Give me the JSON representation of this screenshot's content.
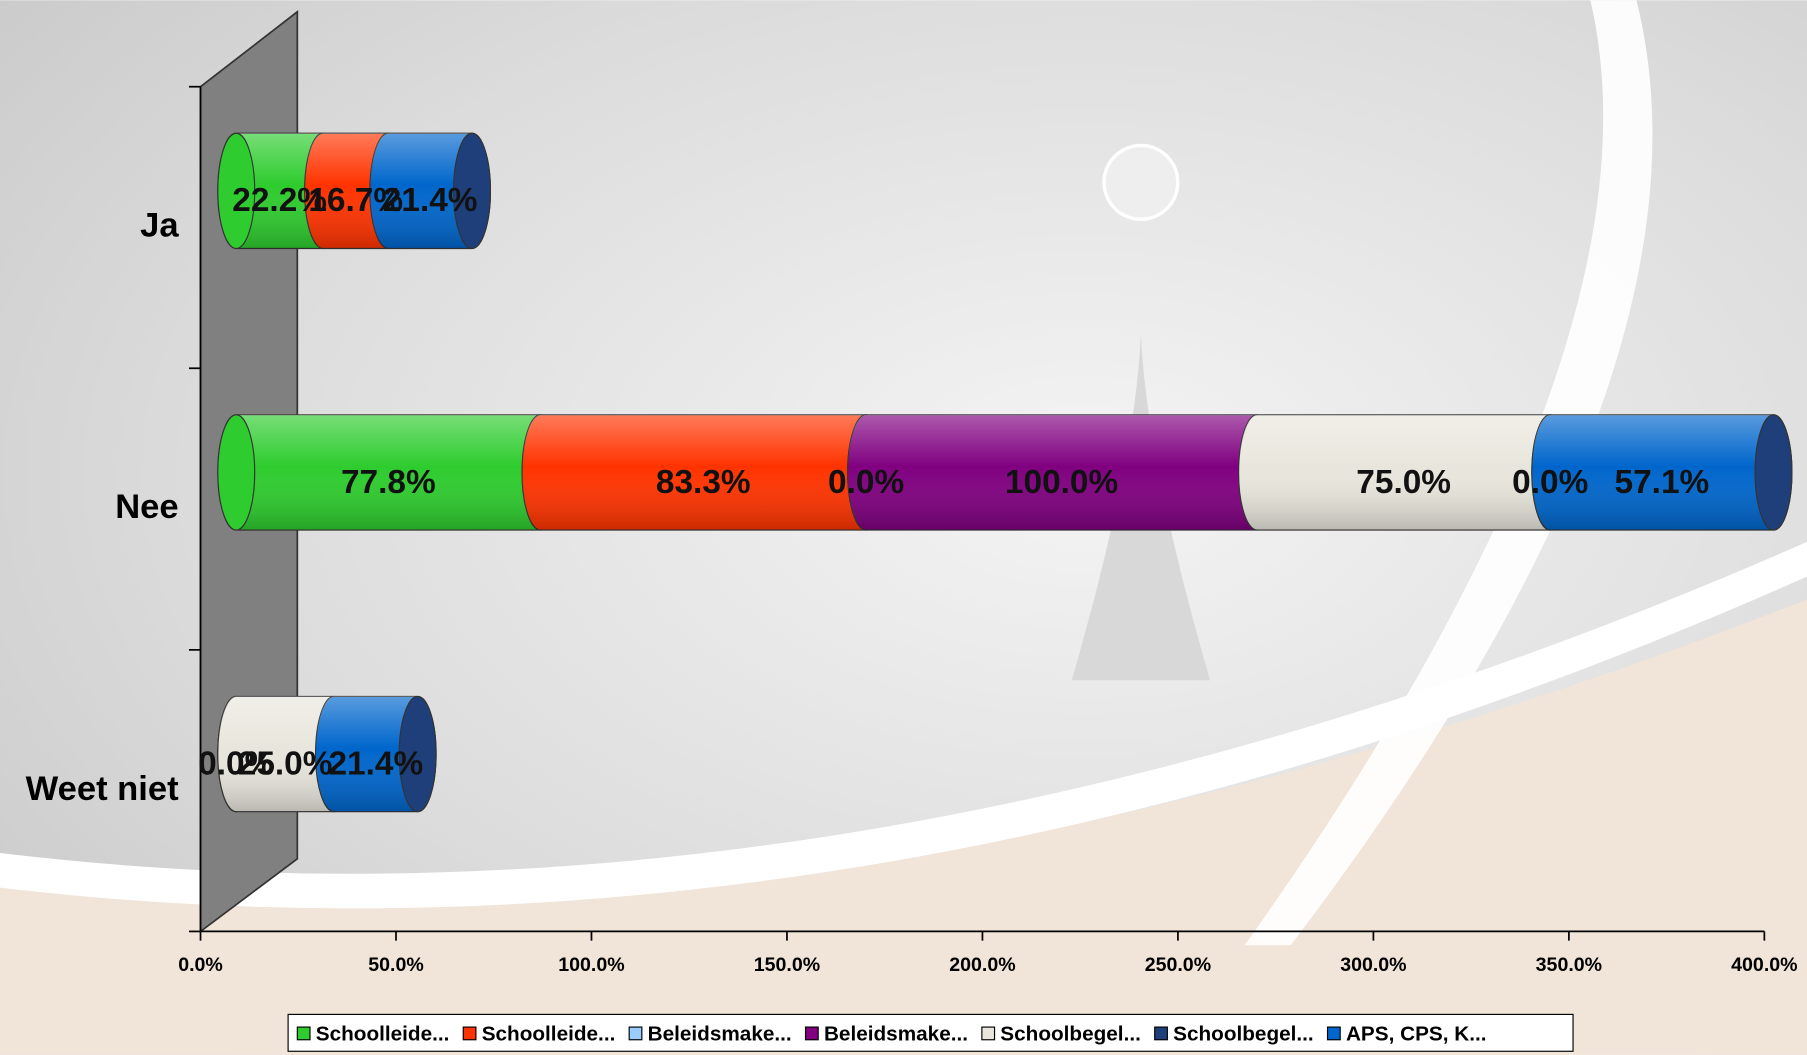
{
  "chart_data": {
    "type": "bar",
    "orientation": "horizontal",
    "stacked": true,
    "categories": [
      "Ja",
      "Nee",
      "Weet niet"
    ],
    "series": [
      {
        "name": "Schoolleide...",
        "color": "#2ecc2e",
        "values": [
          22.2,
          77.8,
          0.0
        ],
        "value_labels": [
          "22.2%",
          "77.8%",
          "0.0%"
        ]
      },
      {
        "name": "Schoolleide...",
        "color": "#ff3300",
        "values": [
          16.7,
          83.3,
          null
        ],
        "value_labels": [
          "16.7%",
          "83.3%",
          null
        ]
      },
      {
        "name": "Beleidsmake...",
        "color": "#99ccff",
        "values": [
          null,
          0.0,
          null
        ],
        "value_labels": [
          null,
          "0.0%",
          null
        ]
      },
      {
        "name": "Beleidsmake...",
        "color": "#800080",
        "values": [
          null,
          100.0,
          null
        ],
        "value_labels": [
          null,
          "100.0%",
          null
        ]
      },
      {
        "name": "Schoolbegel...",
        "color": "#e8e6dc",
        "values": [
          null,
          75.0,
          25.0
        ],
        "value_labels": [
          null,
          "75.0%",
          "25.0%"
        ]
      },
      {
        "name": "Schoolbegel...",
        "color": "#1f3f7a",
        "values": [
          null,
          0.0,
          null
        ],
        "value_labels": [
          null,
          "0.0%",
          null
        ]
      },
      {
        "name": "APS, CPS, K...",
        "color": "#0066cc",
        "values": [
          21.4,
          57.1,
          21.4
        ],
        "value_labels": [
          "21.4%",
          "57.1%",
          "21.4%"
        ]
      }
    ],
    "xlim": [
      0,
      400
    ],
    "xticks": [
      {
        "value": 0,
        "label": "0.0%"
      },
      {
        "value": 50,
        "label": "50.0%"
      },
      {
        "value": 100,
        "label": "100.0%"
      },
      {
        "value": 150,
        "label": "150.0%"
      },
      {
        "value": 200,
        "label": "200.0%"
      },
      {
        "value": 250,
        "label": "250.0%"
      },
      {
        "value": 300,
        "label": "300.0%"
      },
      {
        "value": 350,
        "label": "350.0%"
      },
      {
        "value": 400,
        "label": "400.0%"
      }
    ],
    "legend": "bottom"
  }
}
